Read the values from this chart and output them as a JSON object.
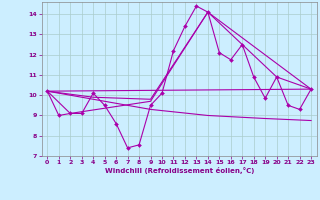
{
  "xlabel": "Windchill (Refroidissement éolien,°C)",
  "background_color": "#cceeff",
  "grid_color": "#aacccc",
  "line_color": "#aa00aa",
  "xlim": [
    -0.5,
    23.5
  ],
  "ylim": [
    7.0,
    14.6
  ],
  "yticks": [
    7,
    8,
    9,
    10,
    11,
    12,
    13,
    14
  ],
  "xticks": [
    0,
    1,
    2,
    3,
    4,
    5,
    6,
    7,
    8,
    9,
    10,
    11,
    12,
    13,
    14,
    15,
    16,
    17,
    18,
    19,
    20,
    21,
    22,
    23
  ],
  "line1_x": [
    0,
    1,
    2,
    3,
    4,
    5,
    6,
    7,
    8,
    9,
    10,
    11,
    12,
    13,
    14,
    15,
    16,
    17,
    18,
    19,
    20,
    21,
    22,
    23
  ],
  "line1_y": [
    10.2,
    9.0,
    9.1,
    9.1,
    10.1,
    9.5,
    8.6,
    7.4,
    7.55,
    9.5,
    10.1,
    12.2,
    13.4,
    14.4,
    14.1,
    12.1,
    11.75,
    12.5,
    10.9,
    9.85,
    10.9,
    9.5,
    9.3,
    10.3
  ],
  "line2_x": [
    0,
    2,
    9,
    14,
    23
  ],
  "line2_y": [
    10.2,
    9.1,
    9.7,
    14.1,
    10.3
  ],
  "line3_x": [
    0,
    4,
    9,
    14,
    20,
    23
  ],
  "line3_y": [
    10.2,
    9.9,
    9.8,
    14.1,
    10.9,
    10.3
  ],
  "line4_x": [
    0,
    23
  ],
  "line4_y": [
    10.2,
    10.3
  ],
  "line5_x": [
    0,
    9,
    14,
    19,
    23
  ],
  "line5_y": [
    10.2,
    9.3,
    9.0,
    8.85,
    8.75
  ]
}
